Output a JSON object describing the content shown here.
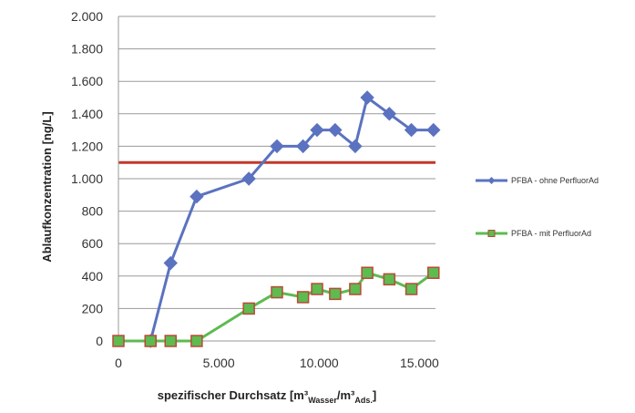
{
  "chart_data": {
    "type": "line",
    "xlabel": {
      "main": "spezifischer Durchsatz [m³",
      "sub1": "Wasser",
      "mid": "/m³",
      "sub2": "Ads.",
      "end": "]"
    },
    "ylabel": "Ablaufkonzentration [ng/L]",
    "xlim": [
      0,
      15800
    ],
    "ylim": [
      0,
      2000
    ],
    "x_ticks": [
      {
        "value": 0,
        "label": "0"
      },
      {
        "value": 5000,
        "label": "5.000"
      },
      {
        "value": 10000,
        "label": "10.000"
      },
      {
        "value": 15000,
        "label": "15.000"
      }
    ],
    "y_ticks": [
      {
        "value": 0,
        "label": "0"
      },
      {
        "value": 200,
        "label": "200"
      },
      {
        "value": 400,
        "label": "400"
      },
      {
        "value": 600,
        "label": "600"
      },
      {
        "value": 800,
        "label": "800"
      },
      {
        "value": 1000,
        "label": "1.000"
      },
      {
        "value": 1200,
        "label": "1.200"
      },
      {
        "value": 1400,
        "label": "1.400"
      },
      {
        "value": 1600,
        "label": "1.600"
      },
      {
        "value": 1800,
        "label": "1.800"
      },
      {
        "value": 2000,
        "label": "2.000"
      }
    ],
    "grid": "horizontal",
    "legend_position": "right",
    "reference_line": {
      "y": 1100,
      "color": "#c0392b"
    },
    "series": [
      {
        "name": "PFBA - ohne PerfluorAd",
        "color": "#5b72c0",
        "marker": "diamond",
        "points": [
          [
            1600,
            0
          ],
          [
            2600,
            480
          ],
          [
            3900,
            890
          ],
          [
            6500,
            1000
          ],
          [
            7900,
            1200
          ],
          [
            9200,
            1200
          ],
          [
            9900,
            1300
          ],
          [
            10800,
            1300
          ],
          [
            11800,
            1200
          ],
          [
            12400,
            1500
          ],
          [
            13500,
            1400
          ],
          [
            14600,
            1300
          ],
          [
            15700,
            1300
          ]
        ]
      },
      {
        "name": "PFBA - mit PerfluorAd",
        "color": "#5dbb4f",
        "marker": "square",
        "points": [
          [
            0,
            0
          ],
          [
            1600,
            0
          ],
          [
            2600,
            0
          ],
          [
            3900,
            0
          ],
          [
            6500,
            200
          ],
          [
            7900,
            300
          ],
          [
            9200,
            270
          ],
          [
            9900,
            320
          ],
          [
            10800,
            290
          ],
          [
            11800,
            320
          ],
          [
            12400,
            420
          ],
          [
            13500,
            380
          ],
          [
            14600,
            320
          ],
          [
            15700,
            420
          ]
        ]
      }
    ]
  }
}
